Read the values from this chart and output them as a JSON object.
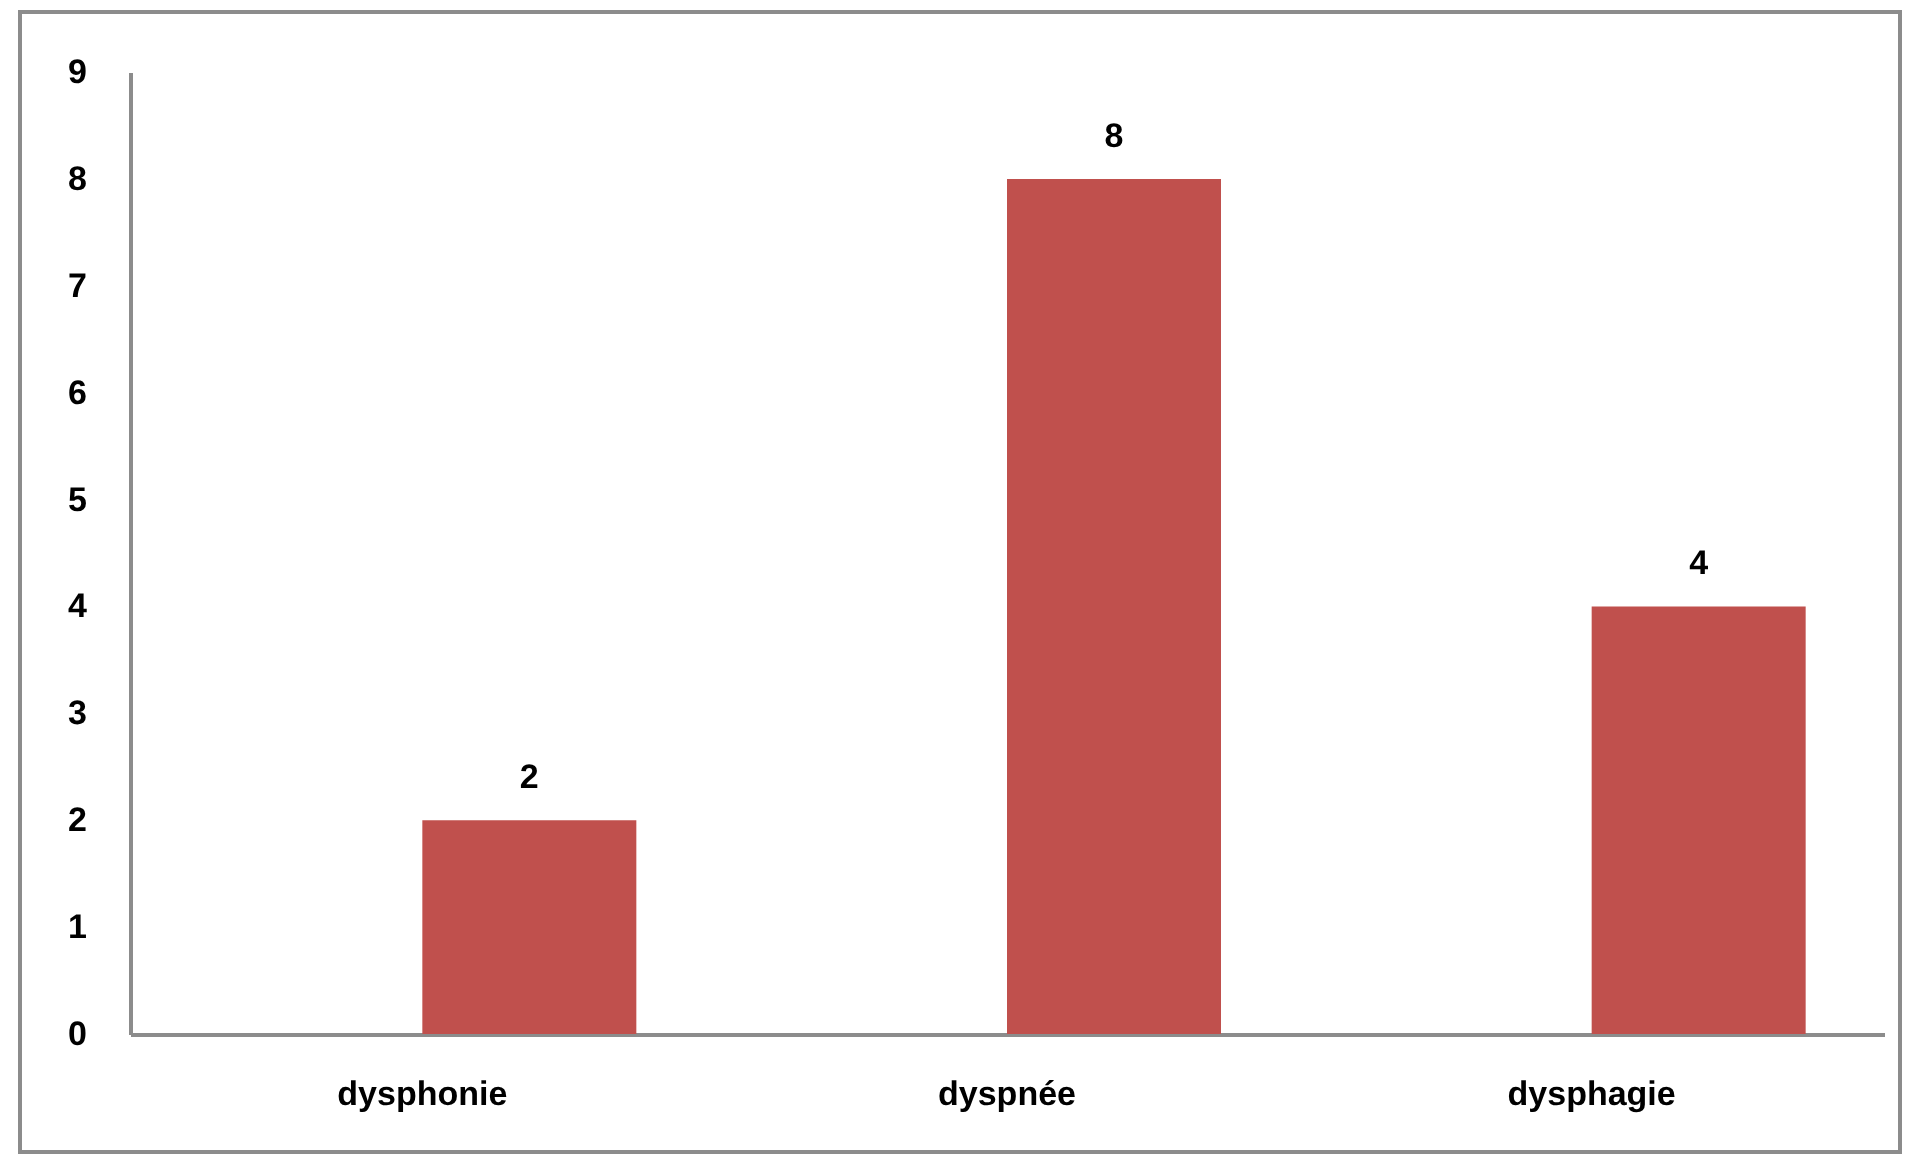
{
  "chart_data": {
    "type": "bar",
    "categories": [
      "dysphonie",
      "dyspnée",
      "dysphagie"
    ],
    "values": [
      2,
      8,
      4
    ],
    "color": "#c0504d",
    "ylim": [
      0,
      9
    ],
    "yticks": [
      0,
      1,
      2,
      3,
      4,
      5,
      6,
      7,
      8,
      9
    ],
    "grid": false,
    "data_labels": true
  }
}
